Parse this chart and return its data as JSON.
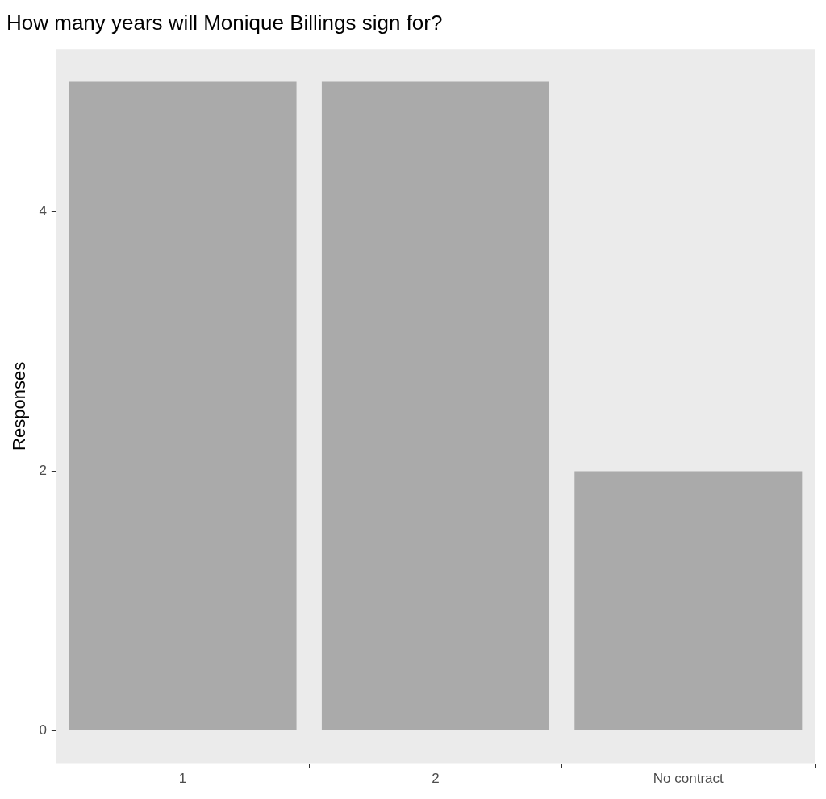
{
  "chart_data": {
    "type": "bar",
    "title": "How many years will Monique Billings sign for?",
    "ylabel": "Responses",
    "categories": [
      "1",
      "2",
      "No contract"
    ],
    "values": [
      5,
      5,
      2
    ],
    "color": "#aaaaaa",
    "ylim": [
      -0.25,
      5.25
    ],
    "yticks": [
      0,
      2,
      4
    ],
    "grid": false,
    "legend": false
  }
}
